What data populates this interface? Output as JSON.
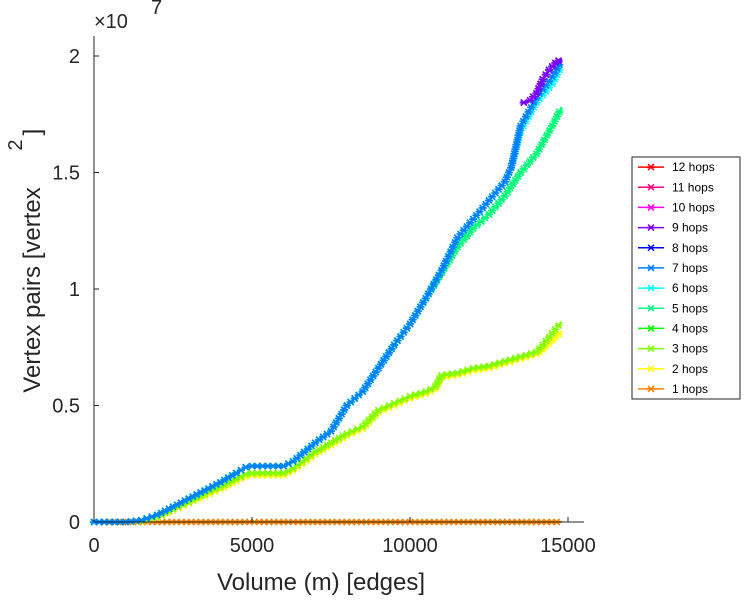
{
  "chart_data": {
    "type": "line",
    "xlabel": "Volume (m) [edges]",
    "ylabel": "Vertex pairs [vertex",
    "ylabel_superscript": "2",
    "ylabel_close": "]",
    "exponent_label": "×10",
    "exponent_power": "7",
    "xlim": [
      0,
      15500
    ],
    "ylim": [
      0,
      2.1
    ],
    "x_ticks": [
      0,
      5000,
      10000,
      15000
    ],
    "x_tick_labels": [
      "0",
      "5000",
      "10000",
      "15000"
    ],
    "y_ticks": [
      0,
      0.5,
      1,
      1.5,
      2
    ],
    "y_tick_labels": [
      "0",
      "0.5",
      "1",
      "1.5",
      "2"
    ],
    "grid": false,
    "legend_position": "right",
    "legend": [
      {
        "label": "12 hops",
        "color": "#ff0000"
      },
      {
        "label": "11 hops",
        "color": "#ff0080"
      },
      {
        "label": "10 hops",
        "color": "#ff00ff"
      },
      {
        "label": "9 hops",
        "color": "#8000ff"
      },
      {
        "label": "8 hops",
        "color": "#0000ff"
      },
      {
        "label": "7 hops",
        "color": "#0080ff"
      },
      {
        "label": "6 hops",
        "color": "#00ffff"
      },
      {
        "label": "5 hops",
        "color": "#00ff80"
      },
      {
        "label": "4 hops",
        "color": "#00ff00"
      },
      {
        "label": "3 hops",
        "color": "#80ff00"
      },
      {
        "label": "2 hops",
        "color": "#ffff00"
      },
      {
        "label": "1 hops",
        "color": "#ff8000"
      }
    ],
    "series": [
      {
        "name": "1 hops",
        "color": "#ff8000",
        "x": [
          0,
          2000,
          4000,
          6000,
          8000,
          10000,
          12000,
          14000,
          14800
        ],
        "y": [
          0,
          0,
          0,
          0,
          0,
          0,
          0,
          0,
          0
        ]
      },
      {
        "name": "2 hops",
        "color": "#ffff00",
        "x": [
          0,
          1000,
          1500,
          2000,
          2500,
          3000,
          3500,
          4000,
          4500,
          4800,
          5000,
          5500,
          6000,
          6300,
          7000,
          7500,
          8000,
          8500,
          9000,
          9500,
          10000,
          10500,
          10800,
          11000,
          11500,
          12000,
          12500,
          13000,
          13500,
          14000,
          14200,
          14500,
          14800
        ],
        "y": [
          0,
          0,
          0.003,
          0.018,
          0.05,
          0.08,
          0.11,
          0.14,
          0.175,
          0.195,
          0.2,
          0.2,
          0.2,
          0.22,
          0.29,
          0.33,
          0.37,
          0.4,
          0.47,
          0.5,
          0.53,
          0.55,
          0.57,
          0.62,
          0.63,
          0.65,
          0.66,
          0.68,
          0.7,
          0.72,
          0.74,
          0.78,
          0.82
        ]
      },
      {
        "name": "3 hops",
        "color": "#80ff00",
        "x": [
          0,
          1000,
          1500,
          2000,
          2500,
          3000,
          3500,
          4000,
          4500,
          4800,
          5000,
          5500,
          6000,
          6300,
          7000,
          7500,
          8000,
          8500,
          9000,
          9500,
          10000,
          10500,
          10800,
          11000,
          11500,
          12000,
          12500,
          13000,
          13500,
          14000,
          14200,
          14500,
          14800
        ],
        "y": [
          0,
          0,
          0.004,
          0.022,
          0.055,
          0.085,
          0.12,
          0.15,
          0.185,
          0.205,
          0.21,
          0.21,
          0.21,
          0.23,
          0.3,
          0.34,
          0.38,
          0.41,
          0.48,
          0.51,
          0.54,
          0.56,
          0.58,
          0.63,
          0.64,
          0.66,
          0.67,
          0.69,
          0.71,
          0.73,
          0.76,
          0.81,
          0.86
        ]
      },
      {
        "name": "4 hops",
        "color": "#00ff00",
        "x": [
          0,
          1000,
          1500,
          2000,
          2500,
          3000,
          3500,
          4000,
          4500,
          4800,
          5000,
          5500,
          6000,
          6300,
          7000,
          7500,
          8000,
          8500,
          9000,
          9500,
          10000,
          10500,
          11000,
          11500,
          12000,
          12500,
          13000,
          13500,
          14000,
          14500,
          14800
        ],
        "y": [
          0,
          0,
          0.008,
          0.03,
          0.065,
          0.1,
          0.135,
          0.17,
          0.21,
          0.235,
          0.24,
          0.24,
          0.24,
          0.26,
          0.34,
          0.39,
          0.5,
          0.56,
          0.66,
          0.76,
          0.85,
          0.96,
          1.07,
          1.18,
          1.26,
          1.32,
          1.4,
          1.5,
          1.58,
          1.7,
          1.78
        ]
      },
      {
        "name": "5 hops",
        "color": "#00ff80",
        "x": [
          0,
          1000,
          1500,
          2000,
          2500,
          3000,
          3500,
          4000,
          4500,
          4800,
          5000,
          5500,
          6000,
          6300,
          7000,
          7500,
          8000,
          8500,
          9000,
          9500,
          10000,
          10500,
          11000,
          11500,
          12000,
          12500,
          13000,
          13500,
          14000,
          14500,
          14800
        ],
        "y": [
          0,
          0,
          0.008,
          0.03,
          0.065,
          0.1,
          0.135,
          0.17,
          0.21,
          0.235,
          0.24,
          0.24,
          0.24,
          0.26,
          0.34,
          0.39,
          0.5,
          0.56,
          0.66,
          0.76,
          0.85,
          0.96,
          1.07,
          1.18,
          1.26,
          1.32,
          1.4,
          1.5,
          1.58,
          1.7,
          1.78
        ]
      },
      {
        "name": "6 hops",
        "color": "#00ffff",
        "x": [
          0,
          1000,
          1500,
          2000,
          2500,
          3000,
          3500,
          4000,
          4500,
          4800,
          5000,
          5500,
          6000,
          6300,
          7000,
          7500,
          8000,
          8500,
          9000,
          9500,
          10000,
          10500,
          11000,
          11500,
          12000,
          12500,
          13000,
          13200,
          13500,
          14000,
          14500,
          14800
        ],
        "y": [
          0,
          0,
          0.008,
          0.03,
          0.065,
          0.1,
          0.135,
          0.17,
          0.21,
          0.235,
          0.24,
          0.24,
          0.24,
          0.26,
          0.34,
          0.39,
          0.5,
          0.56,
          0.66,
          0.76,
          0.85,
          0.96,
          1.08,
          1.22,
          1.3,
          1.38,
          1.46,
          1.52,
          1.68,
          1.8,
          1.88,
          1.96
        ]
      },
      {
        "name": "7 hops",
        "color": "#0080ff",
        "x": [
          0,
          1000,
          1500,
          2000,
          2500,
          3000,
          3500,
          4000,
          4500,
          4800,
          5000,
          5500,
          6000,
          6300,
          7000,
          7500,
          8000,
          8500,
          9000,
          9500,
          10000,
          10500,
          11000,
          11500,
          12000,
          12500,
          13000,
          13200,
          13500,
          14000,
          14500,
          14800
        ],
        "y": [
          0,
          0,
          0.008,
          0.03,
          0.065,
          0.1,
          0.135,
          0.17,
          0.21,
          0.235,
          0.24,
          0.24,
          0.24,
          0.26,
          0.34,
          0.39,
          0.5,
          0.56,
          0.66,
          0.76,
          0.85,
          0.96,
          1.08,
          1.22,
          1.3,
          1.38,
          1.46,
          1.52,
          1.7,
          1.82,
          1.91,
          1.98
        ]
      },
      {
        "name": "8 hops",
        "color": "#0000ff",
        "x": [
          13600,
          13800,
          14000,
          14200,
          14400,
          14600,
          14800
        ],
        "y": [
          1.8,
          1.81,
          1.84,
          1.9,
          1.94,
          1.97,
          1.99
        ]
      },
      {
        "name": "9 hops",
        "color": "#8000ff",
        "x": [
          13600,
          13800,
          14000,
          14200,
          14400,
          14600,
          14800
        ],
        "y": [
          1.8,
          1.81,
          1.84,
          1.9,
          1.94,
          1.97,
          1.99
        ]
      }
    ]
  }
}
